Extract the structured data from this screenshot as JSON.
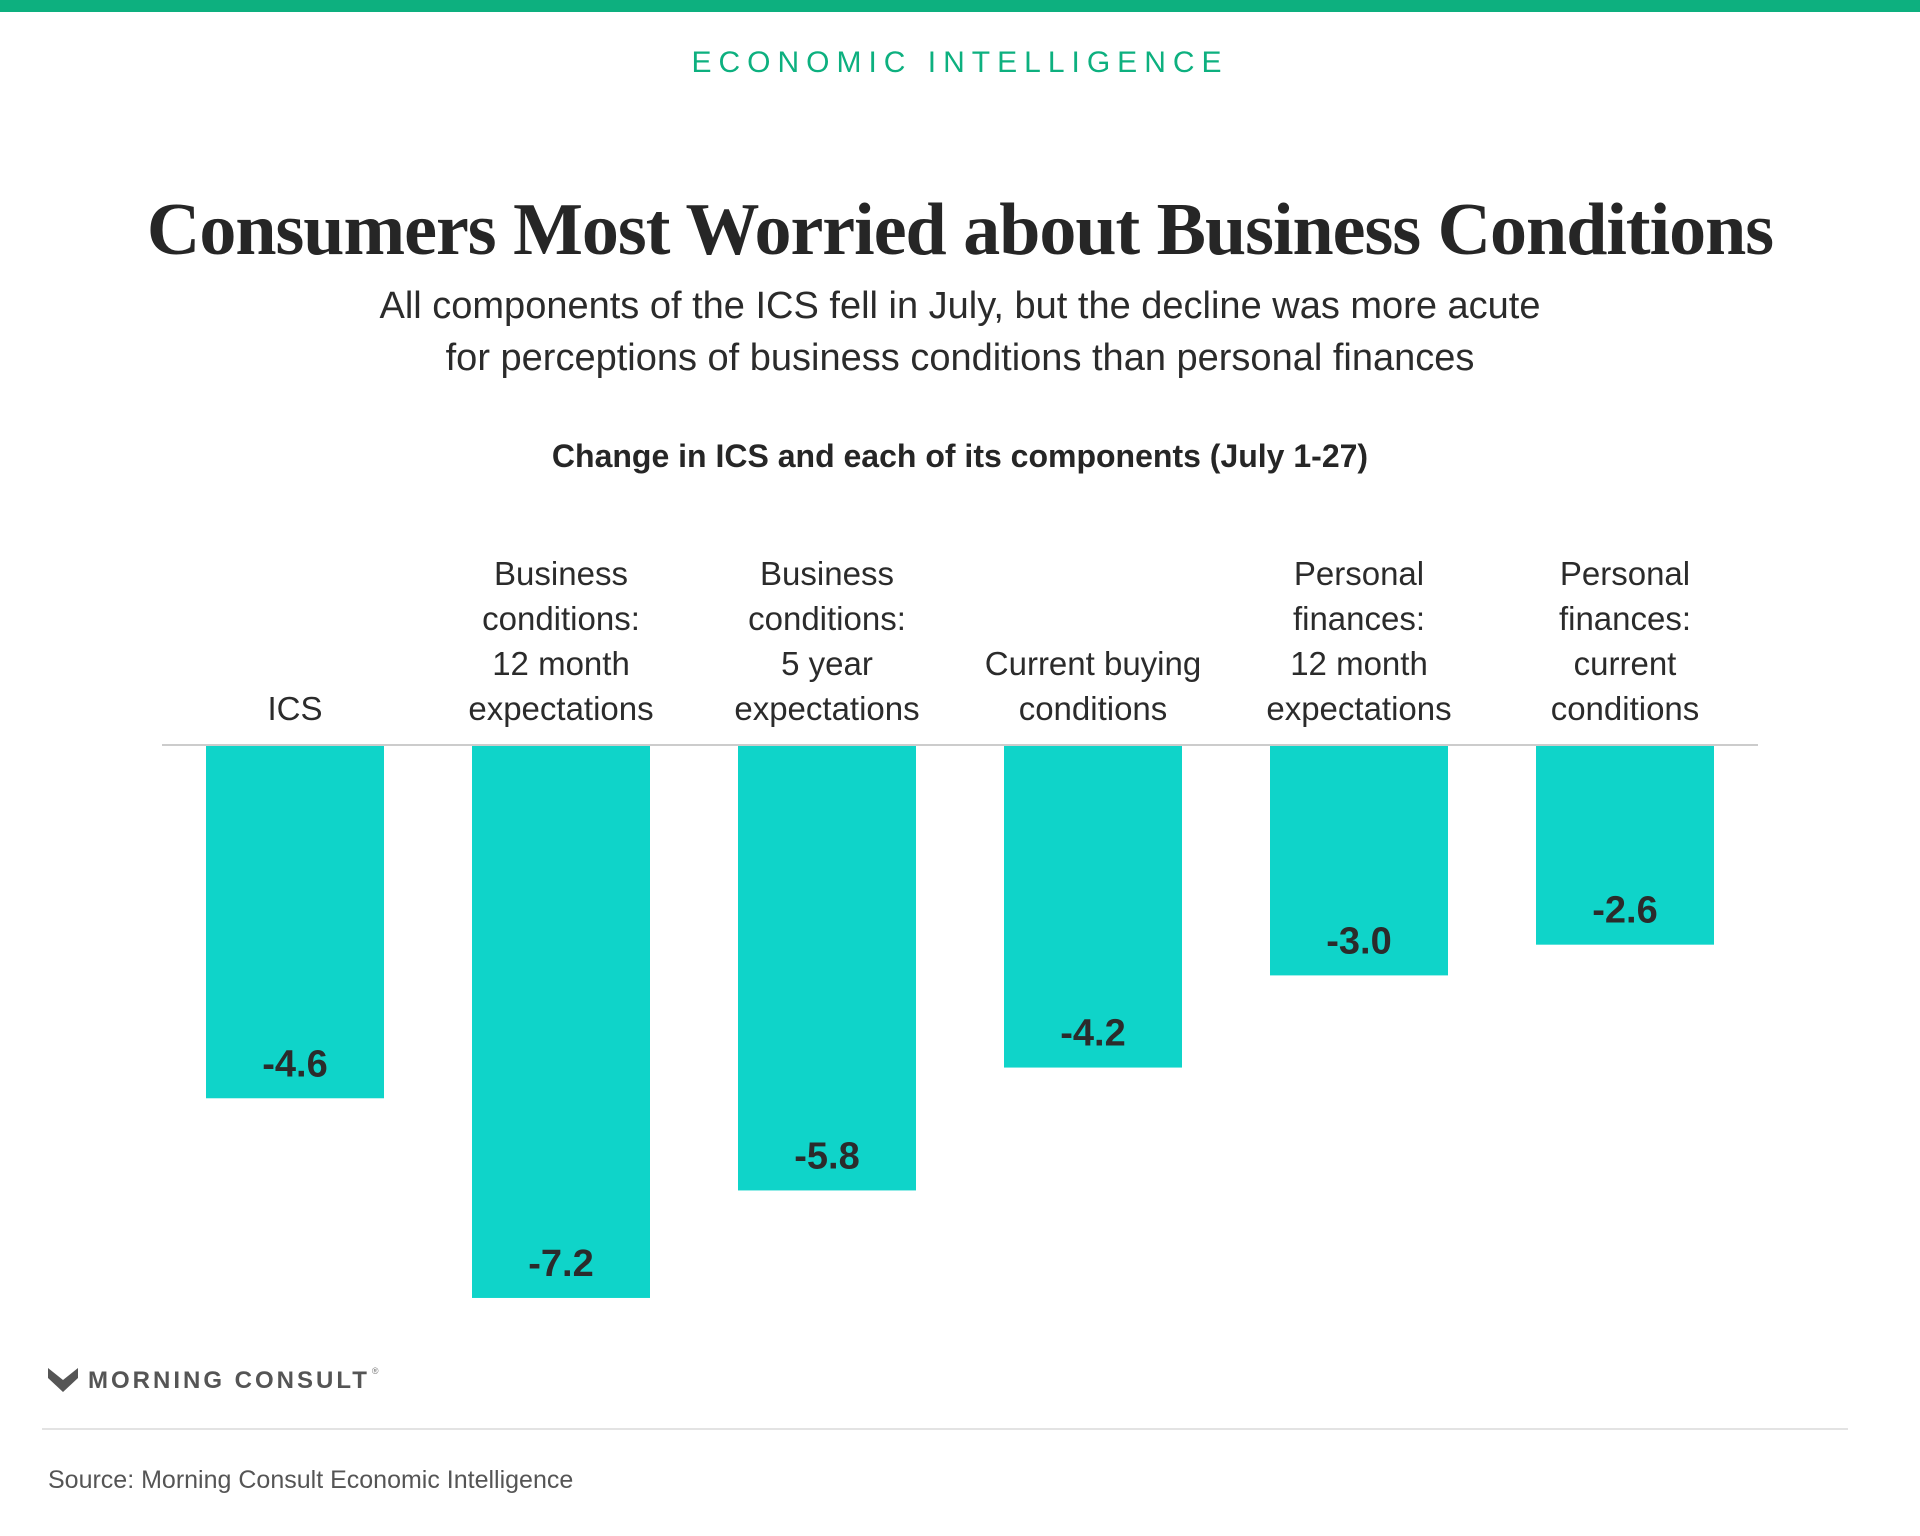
{
  "header": {
    "eyebrow": "ECONOMIC INTELLIGENCE",
    "title": "Consumers Most Worried about Business Conditions",
    "subtitle_lines": [
      "All components of the ICS fell in July, but the decline was more acute",
      "for perceptions of business conditions than personal finances"
    ]
  },
  "colors": {
    "accent": "#0db07f",
    "bar": "#0fd4c9",
    "text": "#2b2b2b",
    "axis": "#cccccc"
  },
  "chart_data": {
    "type": "bar",
    "title": "Change in ICS and each of its components (July 1-27)",
    "categories": [
      [
        "ICS"
      ],
      [
        "Business",
        "conditions:",
        "12 month",
        "expectations"
      ],
      [
        "Business",
        "conditions:",
        "5 year",
        "expectations"
      ],
      [
        "Current buying",
        "conditions"
      ],
      [
        "Personal",
        "finances:",
        "12 month",
        "expectations"
      ],
      [
        "Personal",
        "finances:",
        "current",
        "conditions"
      ]
    ],
    "values": [
      -4.6,
      -7.2,
      -5.8,
      -4.2,
      -3.0,
      -2.6
    ],
    "value_labels": [
      "-4.6",
      "-7.2",
      "-5.8",
      "-4.2",
      "-3.0",
      "-2.6"
    ],
    "ylim": [
      -8,
      0
    ],
    "grid": false,
    "legend": "none"
  },
  "footer": {
    "brand": "MORNING CONSULT",
    "registered_mark": "®",
    "brand_icon": "morning-consult-m-icon",
    "source": "Source: Morning Consult Economic Intelligence"
  }
}
